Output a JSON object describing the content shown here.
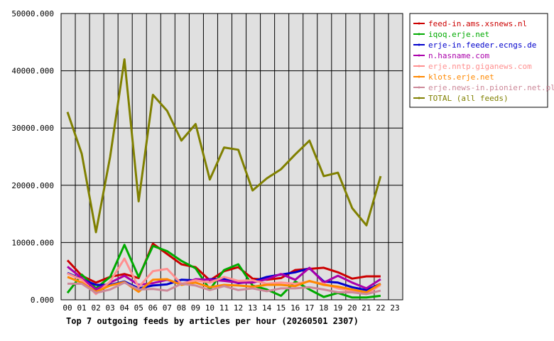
{
  "chart_data": {
    "type": "line",
    "title": "Top 7 outgoing feeds by articles per hour (20260501 2307)",
    "xlabel": "",
    "ylabel": "",
    "x": [
      "00",
      "01",
      "02",
      "03",
      "04",
      "05",
      "06",
      "07",
      "08",
      "09",
      "10",
      "11",
      "12",
      "13",
      "14",
      "15",
      "16",
      "17",
      "18",
      "19",
      "20",
      "21",
      "22",
      "23"
    ],
    "ylim": [
      0,
      50000
    ],
    "yticks": [
      "0.000",
      "10000.000",
      "20000.000",
      "30000.000",
      "40000.000",
      "50000.000"
    ],
    "grid": true,
    "legend_position": "right",
    "series": [
      {
        "name": "feed-in.ams.xsnews.nl",
        "color": "#cc0000",
        "values": [
          6900,
          4200,
          3000,
          4000,
          4500,
          3800,
          9800,
          8000,
          6200,
          5700,
          3400,
          5000,
          5700,
          3700,
          3500,
          3800,
          5200,
          5400,
          5600,
          4800,
          3700,
          4100,
          4100,
          null
        ]
      },
      {
        "name": "iqoq.erje.net",
        "color": "#00aa00",
        "values": [
          1200,
          4400,
          2000,
          4000,
          9600,
          4000,
          9400,
          8500,
          6800,
          5500,
          1800,
          5200,
          6200,
          2500,
          1800,
          700,
          3200,
          1800,
          500,
          1200,
          400,
          400,
          700,
          null
        ]
      },
      {
        "name": "erje-in.feeder.ecngs.de",
        "color": "#0000cc",
        "values": [
          4700,
          3600,
          2600,
          2600,
          3200,
          2000,
          2500,
          2700,
          3500,
          3400,
          3600,
          3600,
          2900,
          3200,
          4000,
          4400,
          4800,
          5500,
          3200,
          3000,
          2200,
          1700,
          2800,
          null
        ]
      },
      {
        "name": "n.hasname.com",
        "color": "#aa00aa",
        "values": [
          5800,
          3800,
          1800,
          3000,
          4200,
          2600,
          2900,
          3500,
          2700,
          3600,
          3500,
          3300,
          3000,
          3000,
          3600,
          4500,
          3500,
          5600,
          3000,
          4200,
          3000,
          2000,
          3600,
          null
        ]
      },
      {
        "name": "erje.nntp.giganews.com",
        "color": "#ff9090",
        "values": [
          4600,
          3500,
          1000,
          3200,
          7200,
          2200,
          5000,
          5400,
          2800,
          3400,
          3000,
          4000,
          3300,
          3400,
          2800,
          3000,
          2800,
          3200,
          2800,
          2000,
          1500,
          1000,
          2600,
          null
        ]
      },
      {
        "name": "klots.erje.net",
        "color": "#ff8800",
        "values": [
          4000,
          3000,
          1400,
          2500,
          3100,
          1400,
          3500,
          3600,
          2600,
          3000,
          2200,
          2600,
          2500,
          2300,
          2600,
          2600,
          2400,
          3300,
          2600,
          2300,
          1800,
          1300,
          2800,
          null
        ]
      },
      {
        "name": "erje.news-in.pionier.net.pl",
        "color": "#cc8899",
        "values": [
          2800,
          2800,
          1200,
          1800,
          3000,
          1800,
          1900,
          1600,
          2800,
          2500,
          1700,
          2400,
          1700,
          2000,
          1500,
          2000,
          2000,
          2200,
          1800,
          1300,
          1300,
          1000,
          1600,
          null
        ]
      },
      {
        "name": "TOTAL (all feeds)",
        "color": "#808000",
        "values": [
          32800,
          25500,
          11800,
          25000,
          42000,
          17200,
          35800,
          33000,
          27800,
          30700,
          21000,
          26600,
          26200,
          19100,
          21200,
          22800,
          25400,
          27800,
          21600,
          22200,
          16000,
          13000,
          21600,
          null
        ]
      }
    ]
  }
}
